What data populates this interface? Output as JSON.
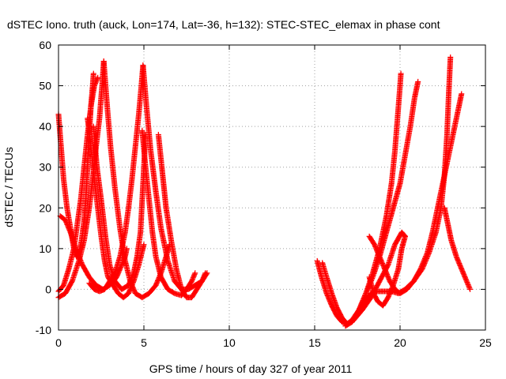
{
  "chart_data": {
    "type": "scatter",
    "title": "dSTEC Iono. truth (auck, Lon=174, Lat=-36, h=132): STEC-STEC_elemax in phase cont",
    "xlabel": "GPS time / hours of day 327 of year 2011",
    "ylabel": "dSTEC  / TECUs",
    "xlim": [
      0,
      25
    ],
    "ylim": [
      -10,
      60
    ],
    "xticks": [
      0,
      5,
      10,
      15,
      20,
      25
    ],
    "yticks": [
      -10,
      0,
      10,
      20,
      30,
      40,
      50,
      60
    ],
    "grid": true,
    "marker": "+",
    "colors": {
      "series": "#ff0000",
      "grid": "#a0a0a0",
      "axes": "#000000"
    },
    "series": [
      {
        "points": [
          [
            0.0,
            43
          ],
          [
            0.15,
            35
          ],
          [
            0.3,
            27
          ],
          [
            0.5,
            20
          ],
          [
            0.7,
            15
          ],
          [
            0.9,
            10
          ],
          [
            1.05,
            8
          ],
          [
            1.2,
            9
          ],
          [
            1.35,
            12
          ],
          [
            1.5,
            17
          ],
          [
            1.6,
            22
          ],
          [
            1.7,
            30
          ],
          [
            1.8,
            38
          ],
          [
            1.9,
            45
          ],
          [
            2.0,
            50
          ],
          [
            2.05,
            53
          ]
        ]
      },
      {
        "points": [
          [
            0.1,
            18
          ],
          [
            0.4,
            17
          ],
          [
            0.7,
            14
          ],
          [
            1.0,
            10
          ],
          [
            1.4,
            6
          ],
          [
            1.8,
            3
          ],
          [
            2.2,
            1
          ],
          [
            2.6,
            0
          ],
          [
            3.0,
            1
          ],
          [
            3.4,
            3
          ],
          [
            3.7,
            6
          ],
          [
            3.9,
            8
          ],
          [
            4.0,
            10
          ]
        ]
      },
      {
        "points": [
          [
            0.0,
            -0.5
          ],
          [
            0.3,
            1
          ],
          [
            0.6,
            5
          ],
          [
            0.9,
            10
          ],
          [
            1.1,
            16
          ],
          [
            1.3,
            22
          ],
          [
            1.5,
            30
          ],
          [
            1.7,
            38
          ],
          [
            1.9,
            45
          ],
          [
            2.1,
            50
          ],
          [
            2.3,
            52
          ]
        ]
      },
      {
        "points": [
          [
            0.0,
            -2
          ],
          [
            0.4,
            -1
          ],
          [
            0.8,
            2
          ],
          [
            1.2,
            7
          ],
          [
            1.5,
            12
          ],
          [
            1.8,
            20
          ],
          [
            2.0,
            27
          ],
          [
            2.2,
            35
          ],
          [
            2.4,
            42
          ],
          [
            2.55,
            50
          ],
          [
            2.65,
            56
          ]
        ]
      },
      {
        "points": [
          [
            1.7,
            42
          ],
          [
            1.9,
            35
          ],
          [
            2.1,
            27
          ],
          [
            2.3,
            20
          ],
          [
            2.5,
            13
          ],
          [
            2.7,
            7
          ],
          [
            2.9,
            3
          ],
          [
            3.2,
            1
          ],
          [
            3.5,
            -1
          ],
          [
            3.8,
            -2
          ],
          [
            4.1,
            -1
          ],
          [
            4.4,
            2
          ],
          [
            4.7,
            6
          ],
          [
            5.0,
            11
          ]
        ]
      },
      {
        "points": [
          [
            2.05,
            40
          ],
          [
            2.25,
            30
          ],
          [
            2.5,
            22
          ],
          [
            2.75,
            13
          ],
          [
            3.0,
            6
          ],
          [
            3.3,
            2
          ],
          [
            3.7,
            0
          ],
          [
            4.1,
            1
          ],
          [
            4.4,
            4
          ],
          [
            4.6,
            8
          ],
          [
            4.8,
            14
          ],
          [
            4.9,
            22
          ],
          [
            5.0,
            30
          ],
          [
            5.1,
            38
          ]
        ]
      },
      {
        "points": [
          [
            1.8,
            1.5
          ],
          [
            2.1,
            0
          ],
          [
            2.4,
            -0.5
          ],
          [
            2.7,
            0
          ],
          [
            3.0,
            2
          ],
          [
            3.3,
            4
          ],
          [
            3.6,
            8
          ],
          [
            3.9,
            14
          ],
          [
            4.1,
            20
          ],
          [
            4.3,
            27
          ],
          [
            4.5,
            35
          ],
          [
            4.7,
            43
          ],
          [
            4.85,
            50
          ],
          [
            4.95,
            55
          ]
        ]
      },
      {
        "points": [
          [
            2.65,
            56
          ],
          [
            2.85,
            45
          ],
          [
            3.05,
            35
          ],
          [
            3.3,
            25
          ],
          [
            3.6,
            15
          ],
          [
            3.9,
            7
          ],
          [
            4.2,
            2
          ],
          [
            4.5,
            -1
          ],
          [
            4.9,
            -2
          ],
          [
            5.3,
            -1
          ],
          [
            5.7,
            1
          ],
          [
            6.0,
            4
          ],
          [
            6.3,
            8
          ],
          [
            6.5,
            11
          ]
        ]
      },
      {
        "points": [
          [
            4.9,
            39
          ],
          [
            5.1,
            30
          ],
          [
            5.3,
            22
          ],
          [
            5.5,
            14
          ],
          [
            5.7,
            8
          ],
          [
            6.0,
            3
          ],
          [
            6.4,
            0
          ],
          [
            6.8,
            -1
          ],
          [
            7.2,
            -1.5
          ],
          [
            7.5,
            0
          ],
          [
            7.8,
            2
          ],
          [
            8.0,
            4
          ]
        ]
      },
      {
        "points": [
          [
            4.95,
            55
          ],
          [
            5.15,
            45
          ],
          [
            5.4,
            34
          ],
          [
            5.7,
            24
          ],
          [
            6.0,
            15
          ],
          [
            6.4,
            7
          ],
          [
            6.8,
            2
          ],
          [
            7.2,
            0
          ],
          [
            7.6,
            0
          ],
          [
            8.0,
            1
          ],
          [
            8.4,
            2
          ],
          [
            8.7,
            4
          ]
        ]
      },
      {
        "points": [
          [
            5.85,
            38
          ],
          [
            6.05,
            30
          ],
          [
            6.3,
            20
          ],
          [
            6.6,
            12
          ],
          [
            6.9,
            5
          ],
          [
            7.2,
            0
          ],
          [
            7.5,
            -2
          ],
          [
            7.8,
            -2
          ],
          [
            8.1,
            0
          ],
          [
            8.4,
            2
          ],
          [
            8.6,
            4
          ]
        ]
      },
      {
        "points": [
          [
            15.15,
            7
          ],
          [
            15.4,
            3
          ],
          [
            15.7,
            -1
          ],
          [
            16.0,
            -4
          ],
          [
            16.3,
            -6.5
          ],
          [
            16.6,
            -8
          ],
          [
            16.9,
            -8.5
          ],
          [
            17.2,
            -7.5
          ],
          [
            17.6,
            -5
          ],
          [
            18.0,
            -1
          ],
          [
            18.4,
            4
          ],
          [
            18.8,
            10
          ],
          [
            19.2,
            18
          ],
          [
            19.5,
            26
          ],
          [
            19.7,
            34
          ],
          [
            19.85,
            42
          ],
          [
            20.0,
            50
          ],
          [
            20.05,
            53
          ]
        ]
      },
      {
        "points": [
          [
            15.45,
            6.5
          ],
          [
            15.7,
            3
          ],
          [
            16.0,
            -1
          ],
          [
            16.3,
            -4.5
          ],
          [
            16.6,
            -7
          ],
          [
            16.9,
            -8.5
          ],
          [
            17.3,
            -7.5
          ],
          [
            17.8,
            -5
          ],
          [
            18.3,
            -2
          ],
          [
            18.8,
            2
          ],
          [
            19.3,
            6
          ],
          [
            19.7,
            11
          ],
          [
            20.1,
            14
          ],
          [
            20.3,
            13
          ]
        ]
      },
      {
        "points": [
          [
            16.8,
            -9
          ],
          [
            17.2,
            -8
          ],
          [
            17.6,
            -5
          ],
          [
            18.0,
            -1
          ],
          [
            18.4,
            3
          ],
          [
            18.8,
            8
          ],
          [
            19.2,
            14
          ],
          [
            19.6,
            20
          ],
          [
            20.0,
            26
          ],
          [
            20.3,
            33
          ],
          [
            20.6,
            40
          ],
          [
            20.85,
            47
          ],
          [
            21.05,
            51
          ]
        ]
      },
      {
        "points": [
          [
            17.5,
            -6
          ],
          [
            17.9,
            -3
          ],
          [
            18.3,
            -1
          ],
          [
            18.7,
            -0.5
          ],
          [
            19.1,
            -0.5
          ],
          [
            19.5,
            -0.5
          ],
          [
            19.9,
            -1
          ],
          [
            20.3,
            0
          ],
          [
            20.8,
            2
          ],
          [
            21.3,
            5
          ],
          [
            21.7,
            9
          ],
          [
            22.1,
            14
          ],
          [
            22.4,
            20
          ],
          [
            22.6,
            28
          ],
          [
            22.75,
            38
          ],
          [
            22.85,
            48
          ],
          [
            22.95,
            57
          ]
        ]
      },
      {
        "points": [
          [
            18.2,
            13
          ],
          [
            18.5,
            11
          ],
          [
            18.8,
            8
          ],
          [
            19.1,
            5
          ],
          [
            19.4,
            2
          ],
          [
            19.7,
            0
          ],
          [
            20.0,
            -1
          ],
          [
            20.4,
            0
          ],
          [
            20.8,
            2
          ],
          [
            21.2,
            5
          ],
          [
            21.6,
            9
          ],
          [
            21.9,
            14
          ],
          [
            22.2,
            20
          ],
          [
            22.5,
            26
          ],
          [
            22.8,
            32
          ],
          [
            23.1,
            38
          ],
          [
            23.4,
            44
          ],
          [
            23.6,
            48
          ]
        ]
      },
      {
        "points": [
          [
            18.2,
            3
          ],
          [
            18.45,
            -1
          ],
          [
            18.7,
            -3
          ],
          [
            19.0,
            -4
          ],
          [
            19.3,
            -2
          ],
          [
            19.6,
            1
          ],
          [
            19.9,
            5
          ],
          [
            20.1,
            10
          ],
          [
            20.3,
            13
          ]
        ]
      },
      {
        "points": [
          [
            22.6,
            20
          ],
          [
            22.8,
            16
          ],
          [
            23.0,
            12
          ],
          [
            23.3,
            8
          ],
          [
            23.6,
            5
          ],
          [
            23.9,
            2
          ],
          [
            24.1,
            0
          ]
        ]
      }
    ]
  }
}
